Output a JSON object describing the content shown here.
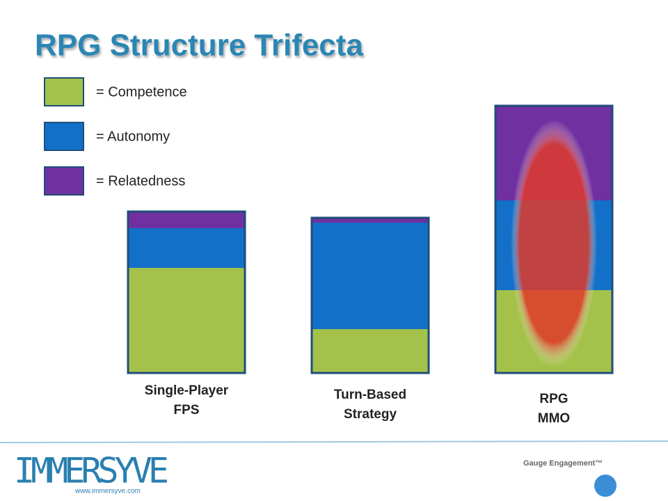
{
  "chart_data": {
    "type": "stacked_bar",
    "title": "RPG Structure Trifecta",
    "categories": [
      "Single-Player\nFPS",
      "Turn-Based\nStrategy",
      "RPG\nMMO"
    ],
    "series": [
      {
        "name": "= Competence",
        "color": "#a4c24a",
        "values": [
          151,
          63,
          119
        ]
      },
      {
        "name": "= Autonomy",
        "color": "#1270c8",
        "values": [
          57,
          153,
          129
        ]
      },
      {
        "name": "= Relatedness",
        "color": "#7030a0",
        "values": [
          24,
          7,
          136
        ]
      }
    ],
    "ylim": [
      0,
      400
    ]
  },
  "footer": {
    "logo": "IMMERSYVE",
    "url": "www.immersyve.com",
    "tagline": "Gauge Engagement™"
  }
}
